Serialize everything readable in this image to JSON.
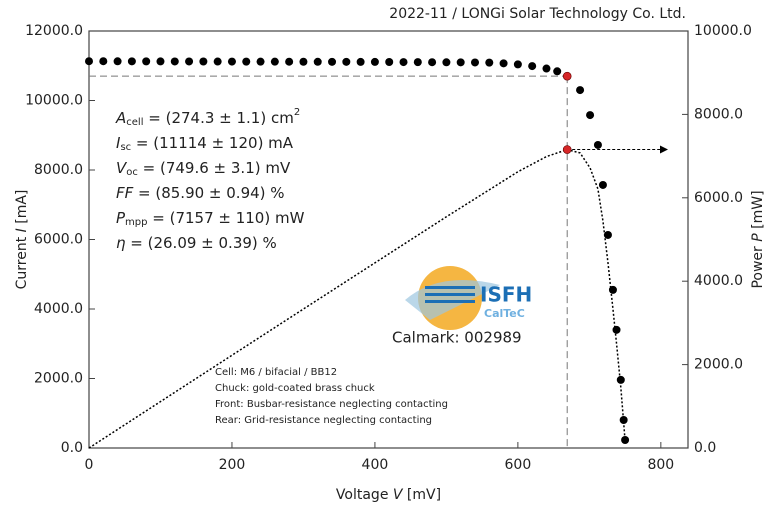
{
  "chart_data": {
    "type": "scatter",
    "title": "2022-11 / LONGi Solar Technology Co. Ltd.",
    "x_label": [
      "Voltage ",
      "V",
      " [mV]"
    ],
    "y_label": [
      "Current ",
      "I",
      " [mA]"
    ],
    "y2_label": [
      "Power ",
      "P",
      " [mW]"
    ],
    "xlim": [
      0,
      838
    ],
    "ylim": [
      0,
      12000
    ],
    "y2lim": [
      0,
      10000
    ],
    "xticks": [
      0,
      200,
      400,
      600,
      800
    ],
    "yticks": [
      {
        "value": 0,
        "label": "0.0"
      },
      {
        "value": 2000,
        "label": "2000.0"
      },
      {
        "value": 4000,
        "label": "4000.0"
      },
      {
        "value": 6000,
        "label": "6000.0"
      },
      {
        "value": 8000,
        "label": "8000.0"
      },
      {
        "value": 10000,
        "label": "10000.0"
      },
      {
        "value": 12000,
        "label": "12000.0"
      }
    ],
    "y2ticks": [
      {
        "value": 0,
        "label": "0.0"
      },
      {
        "value": 2000,
        "label": "2000.0"
      },
      {
        "value": 4000,
        "label": "4000.0"
      },
      {
        "value": 6000,
        "label": "6000.0"
      },
      {
        "value": 8000,
        "label": "8000.0"
      },
      {
        "value": 10000,
        "label": "10000.0"
      }
    ],
    "series": [
      {
        "style": "dots",
        "axis": "y",
        "color": "#000000",
        "x": [
          0,
          20,
          40,
          60,
          80,
          100,
          120,
          140,
          160,
          180,
          200,
          220,
          240,
          260,
          280,
          300,
          320,
          340,
          360,
          380,
          400,
          420,
          440,
          460,
          480,
          500,
          520,
          540,
          560,
          580,
          600,
          620,
          640,
          655,
          669,
          687,
          701,
          712,
          719,
          726,
          733,
          738,
          744,
          748,
          750
        ],
        "values": [
          11130,
          11130,
          11128,
          11127,
          11126,
          11125,
          11124,
          11123,
          11122,
          11121,
          11120,
          11119,
          11118,
          11117,
          11116,
          11115,
          11114,
          11113,
          11112,
          11111,
          11110,
          11108,
          11106,
          11104,
          11102,
          11100,
          11098,
          11095,
          11090,
          11070,
          11040,
          10990,
          10920,
          10840,
          10700,
          10300,
          9580,
          8720,
          7570,
          6130,
          4550,
          3400,
          1960,
          806,
          230
        ]
      },
      {
        "style": "dotted-line",
        "axis": "y2",
        "color": "#000000",
        "x": [
          0,
          100,
          200,
          300,
          400,
          500,
          600,
          640,
          669,
          687,
          701,
          712,
          719,
          726,
          733,
          738,
          744,
          748,
          750
        ],
        "values": [
          0,
          1113,
          2224,
          3333,
          4440,
          5545,
          6624,
          6989,
          7157,
          7076,
          6716,
          6209,
          5443,
          4450,
          3335,
          2509,
          1458,
          603,
          173
        ]
      }
    ],
    "mpp": {
      "voltage": 669,
      "current": 10700,
      "power": 7157,
      "color": "#d62728"
    },
    "parameters": [
      {
        "symbol": "A",
        "sub": "cell",
        "rest": " = (274.3 ± 1.1) cm",
        "sup": "2"
      },
      {
        "symbol": "I",
        "sub": "sc",
        "rest": " = (11114 ± 120) mA"
      },
      {
        "symbol": "V",
        "sub": "oc",
        "rest": " = (749.6 ± 3.1) mV"
      },
      {
        "symbol": "FF",
        "rest": " = (85.90 ± 0.94) %"
      },
      {
        "symbol": "P",
        "sub": "mpp",
        "rest": " = (7157 ± 110) mW"
      },
      {
        "symbol": "η",
        "rest": " = (26.09 ± 0.39) %"
      }
    ],
    "logo": {
      "name": "ISFH",
      "sub": "CalTeC",
      "calmark": "Calmark: 002989"
    },
    "notes": [
      "Cell: M6 / bifacial / BB12",
      "Chuck: gold-coated brass chuck",
      "Front: Busbar-resistance neglecting contacting",
      "Rear: Grid-resistance neglecting contacting"
    ]
  }
}
